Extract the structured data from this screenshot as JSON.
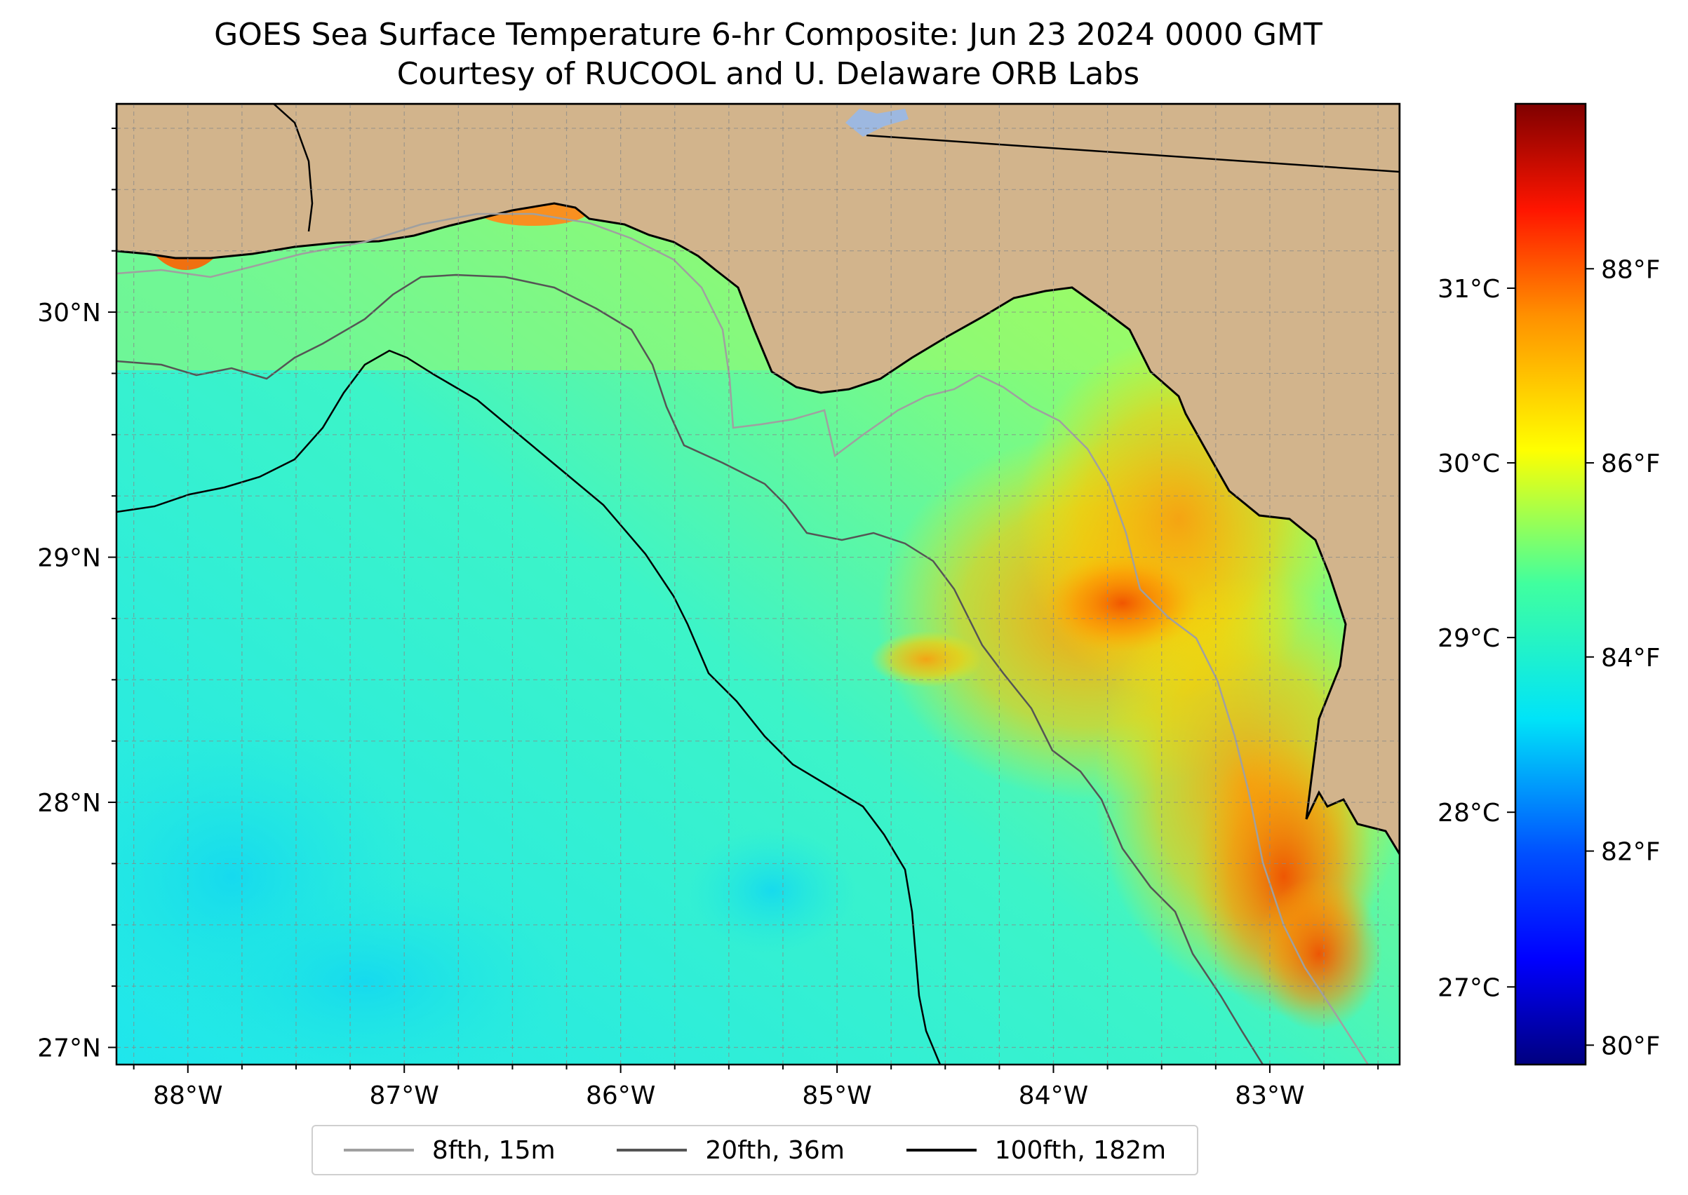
{
  "title": {
    "line1": "GOES Sea Surface Temperature 6-hr Composite: Jun 23 2024 0000 GMT",
    "line2": "Courtesy of RUCOOL and U. Delaware ORB Labs"
  },
  "map": {
    "lon_range": [
      -88.33,
      -82.4
    ],
    "lat_range": [
      26.93,
      30.85
    ],
    "lon_ticks": [
      {
        "value": -88,
        "label": "88°W"
      },
      {
        "value": -87,
        "label": "87°W"
      },
      {
        "value": -86,
        "label": "86°W"
      },
      {
        "value": -85,
        "label": "85°W"
      },
      {
        "value": -84,
        "label": "84°W"
      },
      {
        "value": -83,
        "label": "83°W"
      }
    ],
    "lat_ticks": [
      {
        "value": 27,
        "label": "27°N"
      },
      {
        "value": 28,
        "label": "28°N"
      },
      {
        "value": 29,
        "label": "29°N"
      },
      {
        "value": 30,
        "label": "30°N"
      }
    ],
    "land_color": "#d2b48c",
    "gridlines": true
  },
  "colorbar": {
    "colormap": "jet",
    "range_f": [
      79.8,
      89.7
    ],
    "fahrenheit_ticks": [
      {
        "value": 80,
        "label": "80°F"
      },
      {
        "value": 82,
        "label": "82°F"
      },
      {
        "value": 84,
        "label": "84°F"
      },
      {
        "value": 86,
        "label": "86°F"
      },
      {
        "value": 88,
        "label": "88°F"
      }
    ],
    "celsius_ticks": [
      {
        "value": 27,
        "label": "27°C"
      },
      {
        "value": 28,
        "label": "28°C"
      },
      {
        "value": 29,
        "label": "29°C"
      },
      {
        "value": 30,
        "label": "30°C"
      },
      {
        "value": 31,
        "label": "31°C"
      }
    ]
  },
  "legend": {
    "items": [
      {
        "label": "8fth, 15m",
        "color": "#a0a0a0"
      },
      {
        "label": "20fth, 36m",
        "color": "#555555"
      },
      {
        "label": "100fth, 182m",
        "color": "#000000"
      }
    ]
  }
}
